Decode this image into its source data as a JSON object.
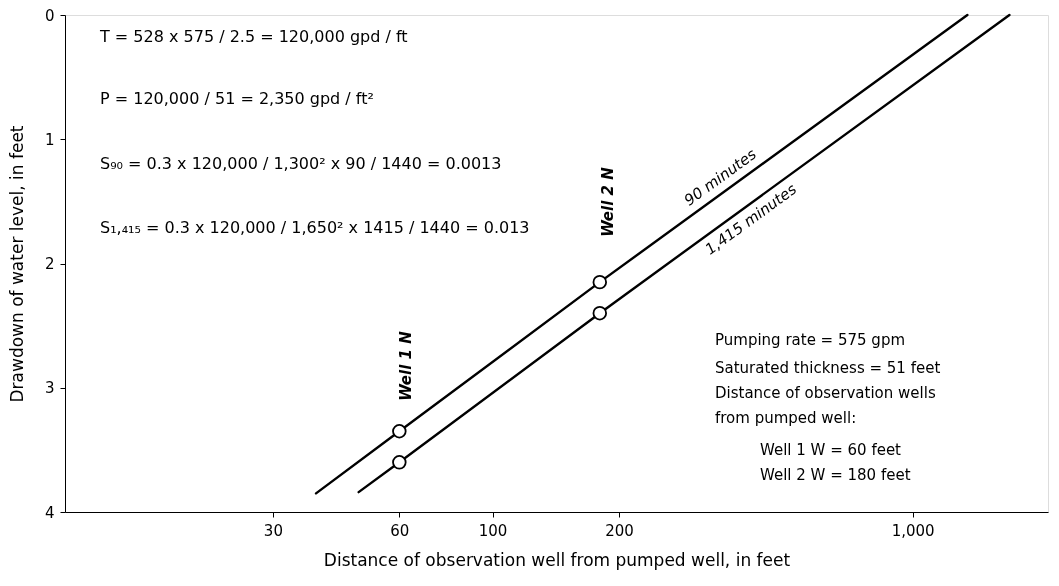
{
  "chart_data": {
    "type": "line",
    "xlabel": "Distance of observation well from pumped well, in feet",
    "ylabel": "Drawdown of water level, in feet",
    "log": "x",
    "xlim": [
      9.6,
      2100
    ],
    "xticks": [
      30,
      60,
      100,
      200,
      {
        "value": 1000,
        "label": "1,000"
      }
    ],
    "ylim": [
      4,
      0
    ],
    "yticks": [
      0,
      1,
      2,
      3,
      4
    ],
    "grid": false,
    "line_style": "solid",
    "series": [
      {
        "name": "90 minutes",
        "type": "line",
        "color": "#000000",
        "x": [
          38,
          60,
          180,
          1350
        ],
        "values": [
          3.85,
          3.35,
          2.15,
          0
        ],
        "marker": "none"
      },
      {
        "name": "1,415 minutes",
        "type": "line",
        "color": "#000000",
        "x": [
          48,
          60,
          180,
          1700
        ],
        "values": [
          3.84,
          3.6,
          2.4,
          0
        ],
        "marker": "none"
      },
      {
        "type": "scatter",
        "color": "#000000",
        "x": [
          60,
          180
        ],
        "values": [
          3.35,
          2.15
        ],
        "marker": "circle"
      },
      {
        "type": "scatter",
        "color": "#000000",
        "x": [
          60,
          180
        ],
        "values": [
          3.6,
          2.4
        ],
        "marker": "circle"
      }
    ],
    "annotations": [
      "T = 528 x 575 / 2.5 = 120,000 gpd / ft",
      "P = 120,000 / 51 = 2,350 gpd / ft²",
      "S₉₀ = 0.3 x 120,000 / 1,300² x 90 / 1440 = 0.0013",
      "S₁,₄₁₅ = 0.3 x 120,000 / 1,650² x 1415 / 1440 = 0.013",
      "Pumping rate = 575 gpm",
      "Saturated thickness = 51 feet",
      "Distance of observation wells",
      "from pumped well:",
      "Well 1 W = 60 feet",
      "Well 2 W = 180 feet",
      "Well 1 N",
      "Well 2 N"
    ]
  }
}
